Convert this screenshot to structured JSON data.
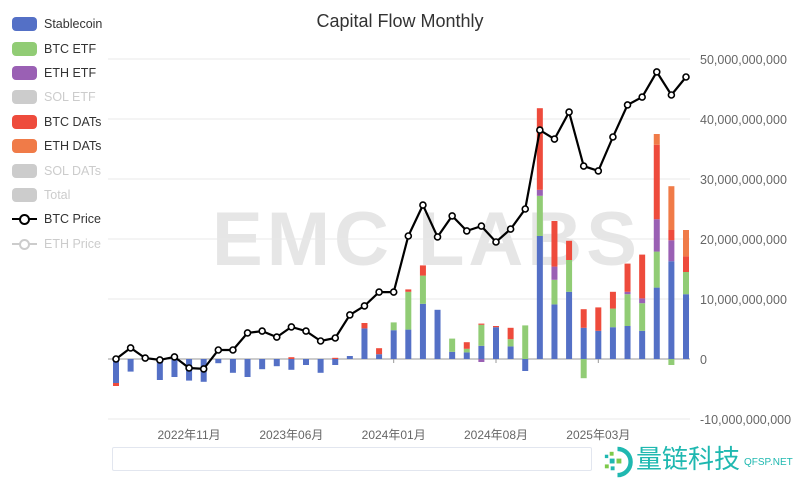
{
  "chart_data": {
    "type": "bar",
    "title": "Capital Flow Monthly",
    "stacked": true,
    "categories": [
      "2022-06",
      "2022-07",
      "2022-08",
      "2022-09",
      "2022-10",
      "2022-11",
      "2022-12",
      "2023-01",
      "2023-02",
      "2023-03",
      "2023-04",
      "2023-05",
      "2023-06",
      "2023-07",
      "2023-08",
      "2023-09",
      "2023-10",
      "2023-11",
      "2023-12",
      "2024-01",
      "2024-02",
      "2024-03",
      "2024-04",
      "2024-05",
      "2024-06",
      "2024-07",
      "2024-08",
      "2024-09",
      "2024-10",
      "2024-11",
      "2024-12",
      "2025-01",
      "2025-02",
      "2025-03",
      "2025-04",
      "2025-05",
      "2025-06",
      "2025-07",
      "2025-08",
      "2025-09"
    ],
    "x_tick_labels": [
      "2022年11月",
      "2023年06月",
      "2024年01月",
      "2024年08月",
      "2025年03月"
    ],
    "x_tick_categories": [
      "2022-11",
      "2023-06",
      "2024-01",
      "2024-08",
      "2025-03"
    ],
    "y_tick_labels": [
      "-10,000,000,000",
      "0",
      "10,000,000,000",
      "20,000,000,000",
      "30,000,000,000",
      "40,000,000,000",
      "50,000,000,000"
    ],
    "ylim": [
      -10000000000,
      50000000000
    ],
    "y_unit_note": "",
    "price_ylim": [
      0,
      120000
    ],
    "grid": true,
    "legend_position": "left",
    "series": [
      {
        "name": "Stablecoin",
        "color": "#5470c6",
        "active": true,
        "values_billion": [
          -4.0,
          -2.1,
          0,
          -3.5,
          -3.0,
          -3.6,
          -3.8,
          -0.7,
          -2.3,
          -3.0,
          -1.7,
          -1.2,
          -1.8,
          -1.0,
          -2.3,
          -1.0,
          0.5,
          5.1,
          0.8,
          4.8,
          4.9,
          9.2,
          8.2,
          1.2,
          1.1,
          2.2,
          5.3,
          2.1,
          -2.0,
          20.5,
          9.1,
          11.2,
          5.2,
          4.7,
          5.3,
          5.5,
          4.7,
          11.9,
          16.3,
          10.8
        ]
      },
      {
        "name": "BTC ETF",
        "color": "#91cc75",
        "active": true,
        "values_billion": [
          0,
          0,
          0,
          0,
          0,
          0,
          0,
          0,
          0,
          0,
          0,
          0,
          0,
          0,
          0,
          0,
          0,
          0,
          0,
          1.3,
          6.3,
          4.7,
          0,
          2.2,
          0.6,
          3.5,
          0,
          1.2,
          5.6,
          6.7,
          4.1,
          5.3,
          -3.2,
          0,
          3.1,
          5.3,
          4.6,
          6.0,
          -1.0,
          3.7
        ]
      },
      {
        "name": "ETH ETF",
        "color": "#9a60b4",
        "active": true,
        "values_billion": [
          0,
          0,
          0,
          0,
          0,
          0,
          0,
          0,
          0,
          0,
          0,
          0,
          0,
          0,
          0,
          0,
          0,
          0,
          0,
          0,
          0,
          0,
          0,
          0,
          0,
          -0.5,
          0,
          0,
          0,
          1.0,
          2.2,
          0,
          0,
          0,
          0,
          0.4,
          0.8,
          5.4,
          3.5,
          0
        ]
      },
      {
        "name": "SOL ETF",
        "color": "#cccccc",
        "active": false,
        "values_billion": []
      },
      {
        "name": "BTC DATs",
        "color": "#ee4b3c",
        "active": true,
        "values_billion": [
          -0.5,
          0,
          0,
          0,
          0,
          0,
          0,
          0,
          0,
          0,
          0,
          0,
          0.3,
          0,
          0,
          0.2,
          0,
          0.9,
          1.0,
          0,
          0.4,
          1.7,
          0,
          0,
          1.1,
          0.2,
          0.2,
          1.9,
          0,
          13.6,
          7.6,
          3.2,
          3.1,
          3.9,
          2.8,
          4.7,
          7.3,
          12.4,
          1.7,
          2.6
        ]
      },
      {
        "name": "ETH DATs",
        "color": "#f07b48",
        "active": true,
        "values_billion": [
          0,
          0,
          0,
          0,
          0,
          0,
          0,
          0,
          0,
          0,
          0,
          0,
          0,
          0,
          0,
          0,
          0,
          0,
          0,
          0,
          0,
          0,
          0,
          0,
          0,
          0,
          0,
          0,
          0,
          0,
          0,
          0,
          0,
          0,
          0,
          0,
          0,
          1.8,
          7.3,
          4.4
        ]
      },
      {
        "name": "SOL DATs",
        "color": "#cccccc",
        "active": false,
        "values_billion": []
      },
      {
        "name": "Total",
        "color": "#cccccc",
        "active": false,
        "values_billion": []
      }
    ],
    "lines": [
      {
        "name": "BTC Price",
        "color": "#000000",
        "active": true,
        "values": [
          20000,
          23700,
          20300,
          19700,
          20700,
          17000,
          16700,
          23000,
          23000,
          28700,
          29300,
          27300,
          30700,
          29300,
          26000,
          27000,
          34700,
          37700,
          42300,
          42300,
          61000,
          71300,
          60700,
          67700,
          62700,
          64300,
          59000,
          63300,
          70000,
          96300,
          93300,
          102300,
          84300,
          82700,
          94000,
          104700,
          107300,
          115700,
          108000,
          114000
        ]
      },
      {
        "name": "ETH Price",
        "color": "#cccccc",
        "active": false,
        "values": []
      }
    ]
  },
  "watermark": "EMC LABS",
  "logo": {
    "text": "量链科技",
    "sub": "QFSP.NET"
  }
}
